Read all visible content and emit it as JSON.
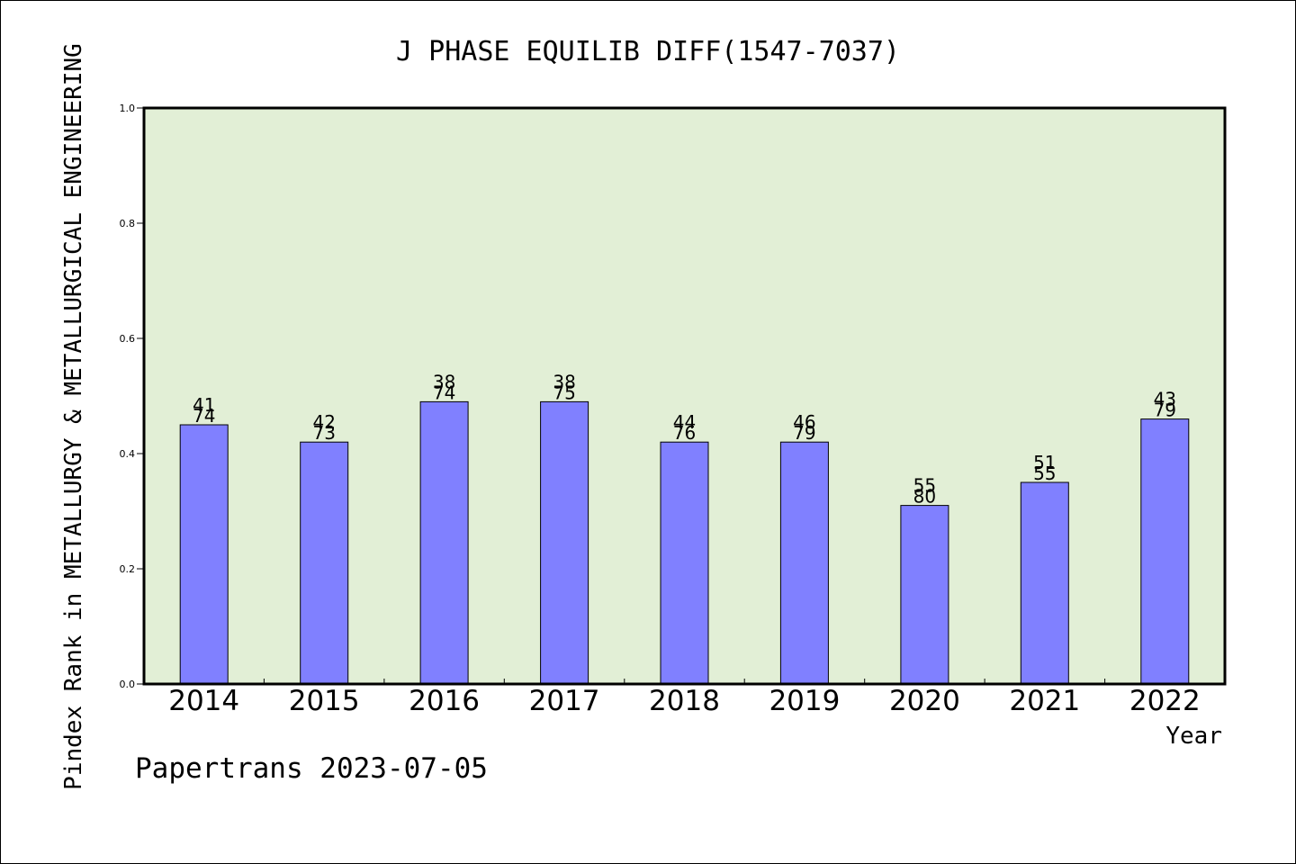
{
  "chart_data": {
    "type": "bar",
    "title": "J PHASE EQUILIB DIFF(1547-7037)",
    "xlabel": "Year",
    "ylabel": "Pindex Rank in METALLURGY & METALLURGICAL ENGINEERING",
    "ylim": [
      0,
      1.0
    ],
    "yticks": [
      "0.0",
      "0.2",
      "0.4",
      "0.6",
      "0.8",
      "1.0"
    ],
    "categories": [
      "2014",
      "2015",
      "2016",
      "2017",
      "2018",
      "2019",
      "2020",
      "2021",
      "2022"
    ],
    "values": [
      0.45,
      0.42,
      0.49,
      0.49,
      0.42,
      0.42,
      0.31,
      0.35,
      0.46
    ],
    "labels_top": [
      "41",
      "42",
      "38",
      "38",
      "44",
      "46",
      "55",
      "51",
      "43"
    ],
    "labels_bottom": [
      "74",
      "73",
      "74",
      "75",
      "76",
      "79",
      "80",
      "55",
      "79"
    ],
    "colors": {
      "plot_bg": "#e2efd6",
      "bar": "#8080ff"
    },
    "grid": false
  },
  "footer": "Papertrans 2023-07-05"
}
